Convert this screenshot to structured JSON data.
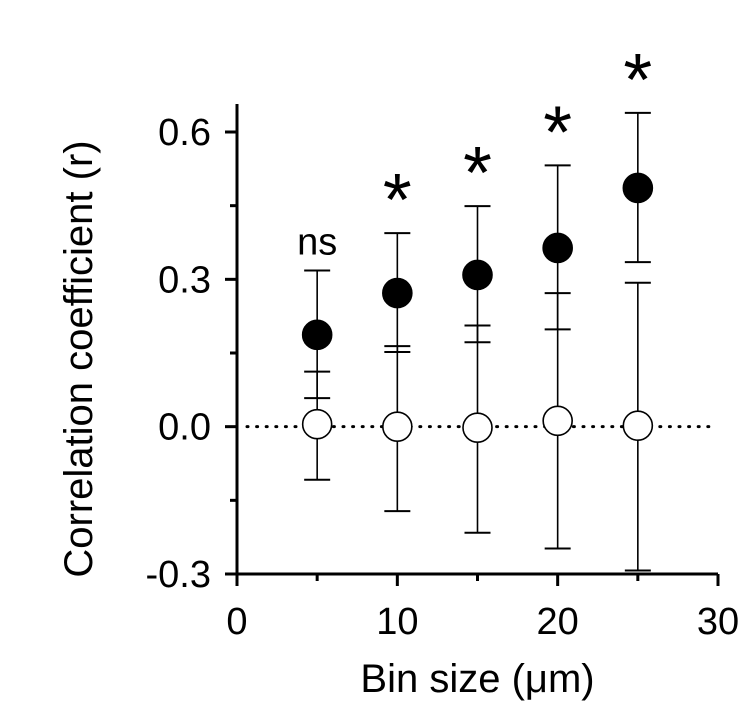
{
  "chart_data": {
    "type": "scatter",
    "xlabel": "Bin size (μm)",
    "ylabel": "Correlation coefficient (r)",
    "xlim": [
      0,
      30
    ],
    "ylim": [
      -0.3,
      0.6
    ],
    "x_ticks": [
      0,
      10,
      20,
      30
    ],
    "x_tick_labels": [
      "0",
      "10",
      "20",
      "30"
    ],
    "x_minor_ticks": [
      5,
      15,
      25
    ],
    "y_ticks": [
      -0.3,
      0.0,
      0.3,
      0.6
    ],
    "y_tick_labels": [
      "-0.3",
      "0.0",
      "0.3",
      "0.6"
    ],
    "y_minor_ticks": [
      -0.15,
      0.15,
      0.45
    ],
    "reference_line": {
      "y": 0.0,
      "style": "dotted"
    },
    "grid": false,
    "series": [
      {
        "marker": "filled-circle",
        "color": "#000000",
        "x": [
          5,
          10,
          15,
          20,
          25
        ],
        "y": [
          0.187,
          0.272,
          0.309,
          0.364,
          0.486
        ],
        "upper": [
          0.318,
          0.394,
          0.449,
          0.532,
          0.639
        ],
        "lower": [
          0.058,
          0.152,
          0.172,
          0.198,
          0.335
        ]
      },
      {
        "marker": "open-circle",
        "color": "#ffffff",
        "x": [
          5,
          10,
          15,
          20,
          25
        ],
        "y": [
          0.005,
          0.0,
          -0.002,
          0.012,
          0.002
        ],
        "upper": [
          0.112,
          0.164,
          0.206,
          0.272,
          0.293
        ],
        "lower": [
          -0.108,
          -0.172,
          -0.216,
          -0.248,
          -0.293
        ]
      }
    ],
    "annotations": [
      {
        "x": 5,
        "text": "ns"
      },
      {
        "x": 10,
        "text": "*"
      },
      {
        "x": 15,
        "text": "*"
      },
      {
        "x": 20,
        "text": "*"
      },
      {
        "x": 25,
        "text": "*"
      }
    ]
  }
}
